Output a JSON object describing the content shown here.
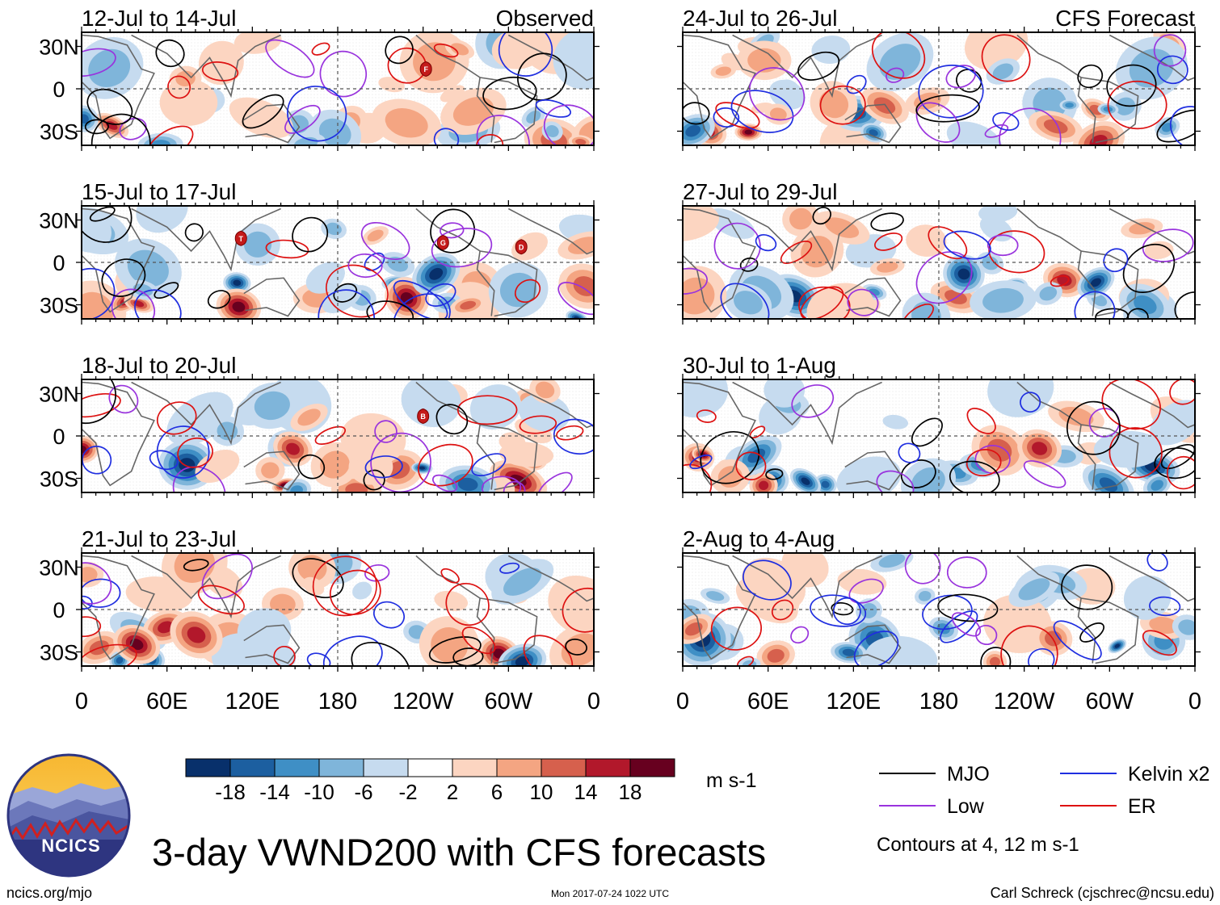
{
  "chart_data": {
    "type": "heatmap",
    "title": "3-day VWND200 with CFS forecasts",
    "variable": "VWND200",
    "units": "m s-1",
    "xlim": [
      0,
      360
    ],
    "ylim": [
      -40,
      40
    ],
    "x_tick_labels": [
      "0",
      "60E",
      "120E",
      "180",
      "120W",
      "60W",
      "0"
    ],
    "y_tick_labels": [
      "30N",
      "0",
      "30S"
    ],
    "colorbar": {
      "levels": [
        -18,
        -14,
        -10,
        -6,
        -2,
        2,
        6,
        10,
        14,
        18
      ],
      "labels": [
        "-18",
        "-14",
        "-10",
        "-6",
        "-2",
        "2",
        "6",
        "10",
        "14",
        "18"
      ],
      "colors": [
        "#08306b",
        "#1c5fa0",
        "#3f8fc5",
        "#7fb5da",
        "#c6dbef",
        "#ffffff",
        "#fcd5c1",
        "#f4a582",
        "#d6604d",
        "#b2182b",
        "#67001f"
      ]
    },
    "columns": [
      "Observed",
      "CFS Forecast"
    ],
    "panels": [
      {
        "column": 0,
        "row": 0,
        "period": "12-Jul to 14-Jul",
        "header": "Observed",
        "storms": [
          {
            "label": "F",
            "lon": 242,
            "lat": 14
          }
        ]
      },
      {
        "column": 0,
        "row": 1,
        "period": "15-Jul to 17-Jul",
        "header": "",
        "storms": [
          {
            "label": "T",
            "lon": 112,
            "lat": 17
          },
          {
            "label": "G",
            "lon": 254,
            "lat": 14
          },
          {
            "label": "D",
            "lon": 309,
            "lat": 11
          }
        ]
      },
      {
        "column": 0,
        "row": 2,
        "period": "18-Jul to 20-Jul",
        "header": "",
        "storms": [
          {
            "label": "B",
            "lon": 240,
            "lat": 14
          }
        ]
      },
      {
        "column": 0,
        "row": 3,
        "period": "21-Jul to 23-Jul",
        "header": "",
        "storms": []
      },
      {
        "column": 1,
        "row": 0,
        "period": "24-Jul to 26-Jul",
        "header": "CFS Forecast",
        "storms": []
      },
      {
        "column": 1,
        "row": 1,
        "period": "27-Jul to 29-Jul",
        "header": "",
        "storms": []
      },
      {
        "column": 1,
        "row": 2,
        "period": "30-Jul to 1-Aug",
        "header": "",
        "storms": []
      },
      {
        "column": 1,
        "row": 3,
        "period": "2-Aug to 4-Aug",
        "header": "",
        "storms": []
      }
    ],
    "legend": {
      "entries": [
        {
          "name": "MJO",
          "color": "#000000"
        },
        {
          "name": "Kelvin x2",
          "color": "#1f2ee0"
        },
        {
          "name": "Low",
          "color": "#9933dd"
        },
        {
          "name": "ER",
          "color": "#dd1111"
        }
      ],
      "note": "Contours at 4, 12 m s-1"
    }
  },
  "logo": {
    "text": "NCICS"
  },
  "footer": {
    "url": "ncics.org/mjo",
    "timestamp": "Mon 2017-07-24 1022 UTC",
    "credit": "Carl Schreck (cjschrec@ncsu.edu)"
  }
}
